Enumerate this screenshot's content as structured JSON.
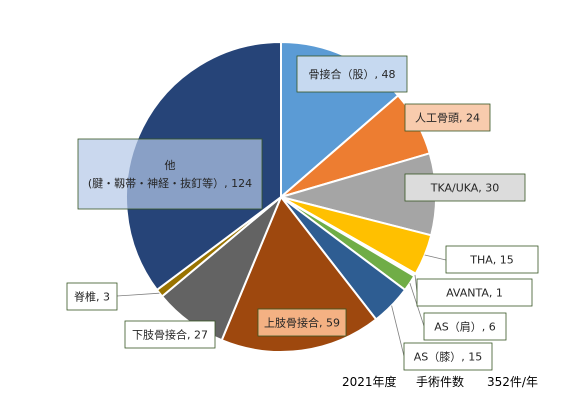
{
  "chart_data": {
    "type": "pie",
    "title": "",
    "slices": [
      {
        "name": "骨接合（股）",
        "value": 48,
        "label": "骨接合（股）, 48",
        "color": "#5b9bd5"
      },
      {
        "name": "人工骨頭",
        "value": 24,
        "label": "人工骨頭, 24",
        "color": "#ed7d31"
      },
      {
        "name": "TKA/UKA",
        "value": 30,
        "label": "TKA/UKA, 30",
        "color": "#a5a5a5"
      },
      {
        "name": "THA",
        "value": 15,
        "label": "THA, 15",
        "color": "#ffc000"
      },
      {
        "name": "AVANTA",
        "value": 1,
        "label": "AVANTA, 1",
        "color": "#ffffff"
      },
      {
        "name": "AS（肩）",
        "value": 6,
        "label": "AS（肩）, 6",
        "color": "#70ad47"
      },
      {
        "name": "AS（膝）",
        "value": 15,
        "label": "AS（膝）, 15",
        "color": "#2e5d92"
      },
      {
        "name": "上肢骨接合",
        "value": 59,
        "label": "上肢骨接合, 59",
        "color": "#9e480e"
      },
      {
        "name": "下肢骨接合",
        "value": 27,
        "label": "下肢骨接合, 27",
        "color": "#636363"
      },
      {
        "name": "脊椎",
        "value": 3,
        "label": "脊椎, 3",
        "color": "#997300"
      },
      {
        "name": "他（腱・靱帯・神経・抜釘等）",
        "value": 124,
        "label_lines": [
          "他",
          "(腱・靱帯・神経・抜釘等）, 124"
        ],
        "color": "#264478"
      }
    ]
  },
  "footer": {
    "year": "2021年度",
    "caption": "手術件数",
    "total": "352件/年"
  }
}
